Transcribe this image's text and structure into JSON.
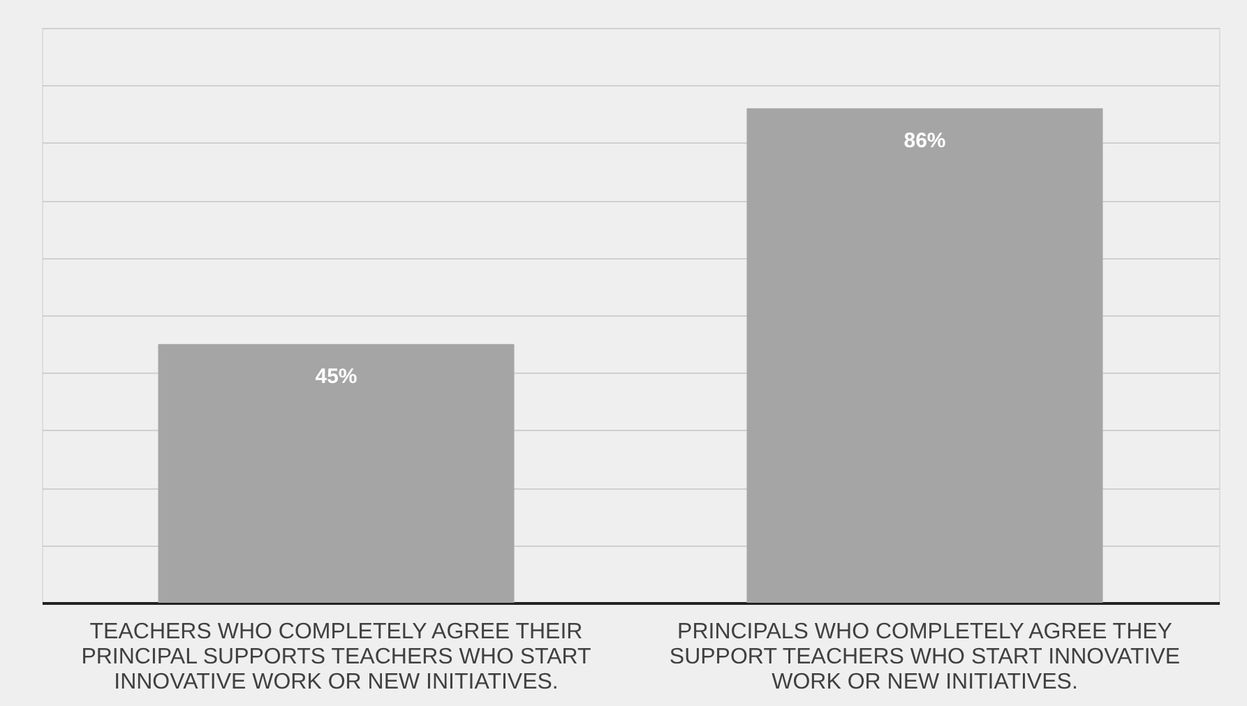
{
  "chart_data": {
    "type": "bar",
    "categories": [
      "TEACHERS WHO COMPLETELY AGREE THEIR PRINCIPAL SUPPORTS TEACHERS WHO START INNOVATIVE WORK OR NEW INITIATIVES.",
      "PRINCIPALS WHO COMPLETELY AGREE THEY SUPPORT TEACHERS WHO START INNOVATIVE WORK OR NEW INITIATIVES."
    ],
    "values": [
      45,
      86
    ],
    "color": "#a5a5a5",
    "value_labels": [
      "45%",
      "86%"
    ],
    "ylim": [
      0,
      100
    ],
    "yticks": [
      {
        "value": 0,
        "label": null
      },
      {
        "value": 10,
        "label": null
      },
      {
        "value": 20,
        "label": null
      },
      {
        "value": 30,
        "label": null
      },
      {
        "value": 40,
        "label": null
      },
      {
        "value": 50,
        "label": null
      },
      {
        "value": 60,
        "label": null
      },
      {
        "value": 70,
        "label": null
      },
      {
        "value": 80,
        "label": null
      },
      {
        "value": 90,
        "label": null
      },
      {
        "value": 100,
        "label": null
      }
    ],
    "grid": "y",
    "tick_labels": "x"
  }
}
